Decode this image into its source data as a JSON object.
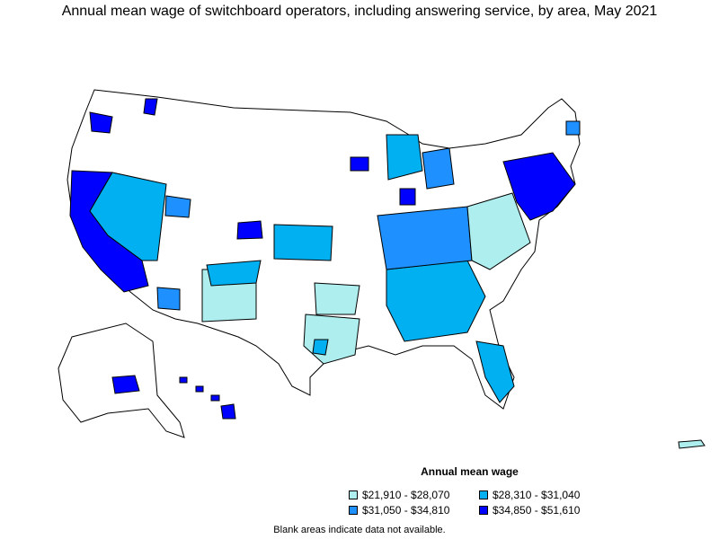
{
  "title": "Annual mean wage of switchboard operators, including answering service, by area, May 2021",
  "legend": {
    "title": "Annual mean wage",
    "items": [
      {
        "label": "$21,910 - $28,070",
        "color": "#aeeeee"
      },
      {
        "label": "$28,310 - $31,040",
        "color": "#00b0f0"
      },
      {
        "label": "$31,050 - $34,810",
        "color": "#1e90ff"
      },
      {
        "label": "$34,850 - $51,610",
        "color": "#0000ff"
      }
    ]
  },
  "note": "Blank areas indicate data not available.",
  "colors": {
    "no_data": "#ffffff",
    "border": "#000000"
  }
}
